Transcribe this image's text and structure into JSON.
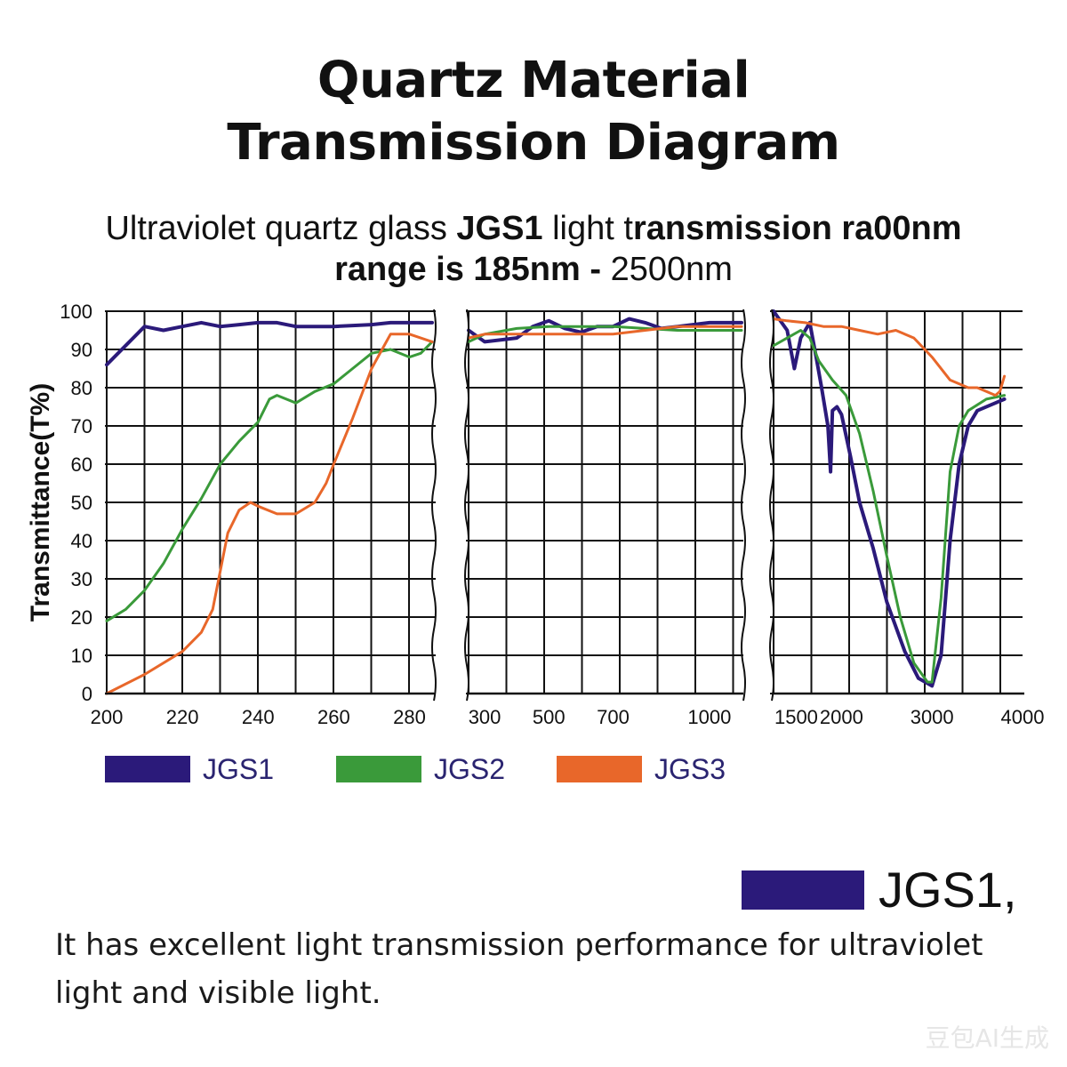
{
  "heading": {
    "line1": "Quartz Material",
    "line2": "Transmission Diagram"
  },
  "subheading": {
    "l1_a": "Ultraviolet quartz glass ",
    "l1_b": "JGS1",
    "l1_c": " light t",
    "l1_d": "ransmission ra00nm",
    "l2_a": "range ",
    "l2_b": "is 185nm -",
    "l2_c": " 2500nm"
  },
  "colors": {
    "JGS1": "#2b1a7a",
    "JGS2": "#3a9a3a",
    "JGS3": "#e8672a",
    "grid": "#111111"
  },
  "chart_data": {
    "type": "line",
    "ylabel": "Transmittance(T%)",
    "ylim": [
      0,
      100
    ],
    "yticks": [
      0,
      10,
      20,
      30,
      40,
      50,
      60,
      70,
      80,
      90,
      100
    ],
    "panels": [
      {
        "xlim": [
          200,
          286
        ],
        "xticks": [
          200,
          220,
          240,
          260,
          280
        ],
        "series": [
          {
            "name": "JGS1",
            "x": [
              200,
              205,
              210,
              215,
              220,
              225,
              230,
              235,
              240,
              245,
              250,
              260,
              270,
              275,
              280,
              286
            ],
            "y": [
              86,
              91,
              96,
              95,
              96,
              97,
              96,
              96.5,
              97,
              97,
              96,
              96,
              96.5,
              97,
              97,
              97
            ]
          },
          {
            "name": "JGS2",
            "x": [
              200,
              205,
              210,
              215,
              220,
              225,
              230,
              235,
              240,
              243,
              245,
              250,
              255,
              260,
              265,
              270,
              275,
              280,
              283,
              286
            ],
            "y": [
              19,
              22,
              27,
              34,
              43,
              51,
              60,
              66,
              71,
              77,
              78,
              76,
              79,
              81,
              85,
              89,
              90,
              88,
              89,
              92
            ]
          },
          {
            "name": "JGS3",
            "x": [
              200,
              210,
              220,
              225,
              228,
              230,
              232,
              235,
              238,
              240,
              245,
              250,
              255,
              258,
              260,
              265,
              270,
              275,
              280,
              286
            ],
            "y": [
              0,
              5,
              11,
              16,
              22,
              32,
              42,
              48,
              50,
              49,
              47,
              47,
              50,
              55,
              60,
              72,
              85,
              94,
              94,
              92
            ]
          }
        ]
      },
      {
        "xlim": [
          250,
          1100
        ],
        "xticks": [
          300,
          500,
          700,
          1000
        ],
        "series": [
          {
            "name": "JGS1",
            "x": [
              250,
              300,
              400,
              450,
              500,
              550,
              600,
              650,
              700,
              750,
              800,
              850,
              1000,
              1100
            ],
            "y": [
              95,
              92,
              93,
              96,
              97.5,
              95.5,
              94.5,
              96,
              96,
              98,
              97,
              95.5,
              97,
              97
            ]
          },
          {
            "name": "JGS2",
            "x": [
              250,
              300,
              400,
              500,
              600,
              700,
              800,
              900,
              1000,
              1100
            ],
            "y": [
              92,
              94,
              95.5,
              96,
              96,
              96,
              95.5,
              95,
              95,
              95
            ]
          },
          {
            "name": "JGS3",
            "x": [
              250,
              300,
              400,
              500,
              600,
              700,
              800,
              900,
              1000,
              1100
            ],
            "y": [
              93,
              94,
              94,
              94,
              94,
              94,
              95,
              96,
              96,
              96
            ]
          }
        ]
      },
      {
        "xlim": [
          1250,
          4000
        ],
        "xticks": [
          1500,
          2000,
          3000,
          4000
        ],
        "series": [
          {
            "name": "JGS1",
            "x": [
              1250,
              1400,
              1480,
              1550,
              1650,
              1720,
              1780,
              1850,
              1880,
              1900,
              1950,
              2000,
              2100,
              2200,
              2350,
              2500,
              2700,
              2850,
              3000,
              3100,
              3200,
              3300,
              3400,
              3500,
              3700,
              3800
            ],
            "y": [
              100,
              95,
              85,
              93,
              97,
              88,
              80,
              70,
              58,
              74,
              75,
              73,
              62,
              50,
              38,
              24,
              11,
              4,
              2,
              10,
              40,
              60,
              70,
              74,
              76,
              77
            ]
          },
          {
            "name": "JGS2",
            "x": [
              1250,
              1400,
              1550,
              1650,
              1750,
              1900,
              2050,
              2200,
              2350,
              2500,
              2650,
              2800,
              2950,
              3000,
              3100,
              3200,
              3300,
              3400,
              3600,
              3800
            ],
            "y": [
              91,
              93,
              95,
              93,
              87,
              82,
              78,
              68,
              53,
              36,
              20,
              8,
              3,
              3,
              25,
              58,
              70,
              74,
              77,
              78
            ]
          },
          {
            "name": "JGS3",
            "x": [
              1250,
              1400,
              1600,
              1800,
              2000,
              2200,
              2400,
              2600,
              2800,
              3000,
              3200,
              3400,
              3500,
              3600,
              3700,
              3750,
              3800
            ],
            "y": [
              98,
              97.5,
              97,
              96,
              96,
              95,
              94,
              95,
              93,
              88,
              82,
              80,
              80,
              79,
              78,
              79,
              83
            ]
          }
        ]
      }
    ],
    "legend": {
      "position": "bottom-left",
      "entries": [
        "JGS1",
        "JGS2",
        "JGS3"
      ]
    }
  },
  "callout": {
    "label": "JGS1,"
  },
  "description": "It has excellent light transmission performance for ultraviolet light and visible light.",
  "watermark": "豆包AI生成"
}
